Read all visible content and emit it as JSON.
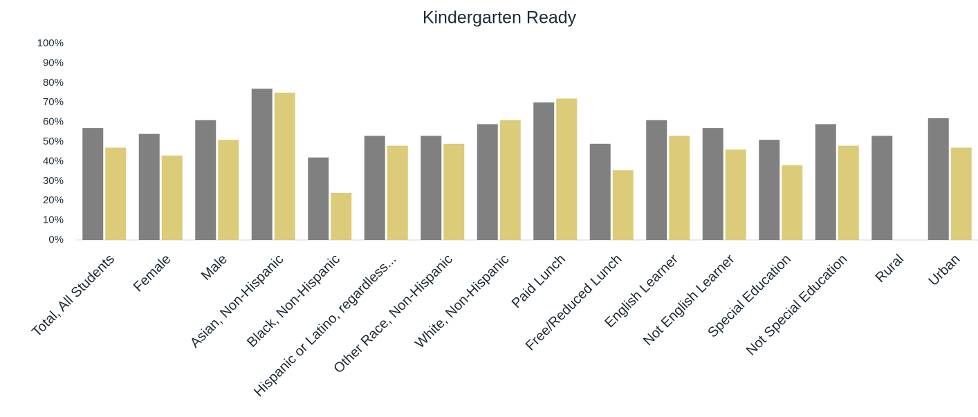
{
  "chart_data": {
    "type": "bar",
    "title": "Kindergarten Ready",
    "categories": [
      "Total, All Students",
      "Female",
      "Male",
      "Asian, Non-Hispanic",
      "Black, Non-Hispanic",
      "Hispanic or Latino, regardless...",
      "Other Race, Non-Hispanic",
      "White, Non-Hispanic",
      "Paid Lunch",
      "Free/Reduced Lunch",
      "English Learner",
      "Not English Learner",
      "Special Education",
      "Not Special Education",
      "Rural",
      "Urban"
    ],
    "series": [
      {
        "color": "#808080",
        "values": [
          57,
          54,
          61,
          77,
          42,
          53,
          53,
          59,
          70,
          49,
          61,
          57,
          51,
          59,
          53,
          62
        ]
      },
      {
        "color": "#dccb78",
        "values": [
          47,
          43,
          51,
          75,
          24,
          48,
          49,
          61,
          72,
          35.5,
          53,
          46,
          38,
          48,
          null,
          47
        ]
      }
    ],
    "ylim": [
      0,
      100
    ],
    "yticks": [
      {
        "value": 0,
        "label": "0%"
      },
      {
        "value": 10,
        "label": "10%"
      },
      {
        "value": 20,
        "label": "20%"
      },
      {
        "value": 30,
        "label": "30%"
      },
      {
        "value": 40,
        "label": "40%"
      },
      {
        "value": 50,
        "label": "50%"
      },
      {
        "value": 60,
        "label": "60%"
      },
      {
        "value": 70,
        "label": "70%"
      },
      {
        "value": 80,
        "label": "80%"
      },
      {
        "value": 90,
        "label": "90%"
      },
      {
        "value": 100,
        "label": "100%"
      }
    ]
  }
}
